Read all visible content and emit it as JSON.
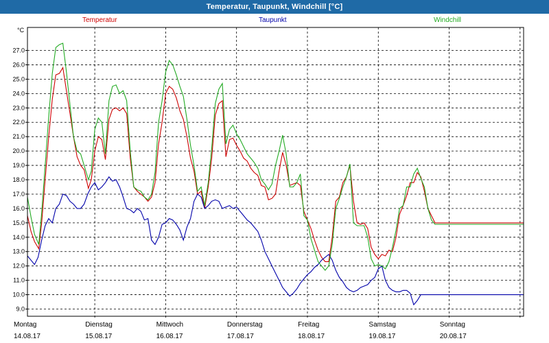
{
  "window": {
    "title": "Temperatur, Taupunkt, Windchill [°C]"
  },
  "colors": {
    "temperature": "#cc0000",
    "dewpoint": "#0000aa",
    "windchill": "#22aa22",
    "titlebar": "#1f6aa6",
    "grid": "#000000"
  },
  "chart_data": {
    "type": "line",
    "title": "Temperatur, Taupunkt, Windchill [°C]",
    "ylabel": "°C",
    "xlabel": "",
    "ylim": [
      8.5,
      28.6
    ],
    "xlim": [
      0,
      7
    ],
    "grid": true,
    "legend": "top",
    "y_ticks": [
      9.0,
      10.0,
      11.0,
      12.0,
      13.0,
      14.0,
      15.0,
      16.0,
      17.0,
      18.0,
      19.0,
      20.0,
      21.0,
      22.0,
      23.0,
      24.0,
      25.0,
      26.0,
      27.0
    ],
    "y_tick_labels": [
      "9.0",
      "10.0",
      "11.0",
      "12.0",
      "13.0",
      "14.0",
      "15.0",
      "16.0",
      "17.0",
      "18.0",
      "19.0",
      "20.0",
      "21.0",
      "22.0",
      "23.0",
      "24.0",
      "25.0",
      "26.0",
      "27.0"
    ],
    "x_ticks": [
      {
        "day": "Montag",
        "date": "14.08.17"
      },
      {
        "day": "Dienstag",
        "date": "15.08.17"
      },
      {
        "day": "Mittwoch",
        "date": "16.08.17"
      },
      {
        "day": "Donnerstag",
        "date": "17.08.17"
      },
      {
        "day": "Freitag",
        "date": "18.08.17"
      },
      {
        "day": "Samstag",
        "date": "19.08.17"
      },
      {
        "day": "Sonntag",
        "date": "20.08.17"
      }
    ],
    "series": [
      {
        "name": "Temperatur",
        "color": "#cc0000",
        "x": [
          0,
          0.05,
          0.1,
          0.16,
          0.2,
          0.25,
          0.3,
          0.35,
          0.4,
          0.45,
          0.5,
          0.55,
          0.6,
          0.65,
          0.7,
          0.75,
          0.8,
          0.86,
          0.9,
          0.95,
          1.0,
          1.05,
          1.1,
          1.15,
          1.2,
          1.25,
          1.3,
          1.35,
          1.4,
          1.45,
          1.5,
          1.55,
          1.6,
          1.65,
          1.7,
          1.75,
          1.8,
          1.85,
          1.9,
          1.95,
          2.0,
          2.05,
          2.1,
          2.15,
          2.2,
          2.25,
          2.3,
          2.35,
          2.4,
          2.45,
          2.5,
          2.55,
          2.6,
          2.65,
          2.7,
          2.75,
          2.8,
          2.85,
          2.9,
          2.95,
          3.0,
          3.05,
          3.1,
          3.15,
          3.2,
          3.25,
          3.3,
          3.35,
          3.4,
          3.45,
          3.5,
          3.55,
          3.6,
          3.65,
          3.7,
          3.75,
          3.8,
          3.85,
          3.9,
          3.95,
          4.0,
          4.05,
          4.1,
          4.15,
          4.2,
          4.25,
          4.3,
          4.35,
          4.4,
          4.45,
          4.5,
          4.55,
          4.6,
          4.65,
          4.7,
          4.75,
          4.8,
          4.85,
          4.9,
          4.95,
          5.0,
          5.05,
          5.1,
          5.15,
          5.2,
          5.25,
          5.3,
          5.35,
          5.4,
          5.45,
          5.5,
          5.55,
          5.6,
          5.65,
          5.7,
          5.75,
          5.8,
          5.85,
          5.9,
          5.95,
          6.0,
          6.05,
          6.1,
          6.15,
          6.2,
          6.25,
          6.3,
          6.35,
          6.4,
          6.45,
          6.5,
          6.55,
          6.6,
          6.65,
          6.7,
          6.75,
          6.8,
          6.85,
          6.9,
          6.95,
          7.0
        ],
        "values": [
          15.5,
          14.4,
          13.7,
          13.2,
          15.0,
          18.0,
          21.0,
          23.6,
          25.3,
          25.4,
          25.8,
          24.2,
          22.6,
          21.0,
          19.6,
          19.0,
          18.7,
          17.4,
          18.0,
          20.0,
          21.0,
          20.8,
          19.4,
          22.2,
          22.9,
          23.0,
          22.8,
          23.0,
          22.6,
          19.5,
          17.5,
          17.2,
          17.0,
          16.8,
          16.5,
          16.8,
          17.8,
          20.5,
          22.0,
          24.0,
          24.5,
          24.3,
          23.7,
          22.8,
          22.2,
          21.0,
          19.5,
          18.6,
          17.0,
          17.2,
          16.0,
          17.5,
          19.5,
          22.5,
          23.3,
          23.5,
          19.6,
          20.8,
          20.9,
          20.4,
          20.0,
          19.5,
          19.3,
          18.8,
          18.5,
          18.3,
          17.6,
          17.5,
          16.6,
          16.7,
          17.0,
          18.6,
          19.9,
          19.0,
          17.6,
          17.7,
          17.8,
          17.6,
          15.8,
          15.2,
          14.6,
          13.8,
          13.1,
          12.6,
          12.3,
          12.3,
          14.0,
          16.5,
          16.8,
          17.8,
          18.2,
          19.0,
          16.5,
          15.0,
          14.9,
          15.0,
          14.6,
          13.3,
          12.8,
          12.5,
          12.8,
          12.7,
          13.1,
          13.0,
          14.0,
          15.6,
          16.2,
          16.9,
          17.8,
          17.8,
          18.5,
          18.2,
          17.2,
          16.0,
          15.5,
          15.0,
          15.0,
          15.0,
          15.0,
          15.0,
          15.0,
          15.0,
          15.0,
          15.0,
          15.0,
          15.0,
          15.0,
          15.0,
          15.0,
          15.0,
          15.0,
          15.0,
          15.0,
          15.0,
          15.0,
          15.0,
          15.0,
          15.0,
          15.0,
          15.0,
          15.0
        ]
      },
      {
        "name": "Taupunkt",
        "color": "#0000aa",
        "x": [
          0,
          0.05,
          0.1,
          0.15,
          0.2,
          0.25,
          0.3,
          0.35,
          0.4,
          0.45,
          0.5,
          0.55,
          0.6,
          0.65,
          0.7,
          0.75,
          0.8,
          0.85,
          0.9,
          0.95,
          1.0,
          1.05,
          1.1,
          1.15,
          1.2,
          1.25,
          1.3,
          1.35,
          1.4,
          1.45,
          1.5,
          1.55,
          1.6,
          1.65,
          1.7,
          1.75,
          1.8,
          1.85,
          1.9,
          1.95,
          2.0,
          2.05,
          2.1,
          2.15,
          2.2,
          2.25,
          2.3,
          2.35,
          2.4,
          2.45,
          2.5,
          2.55,
          2.6,
          2.65,
          2.7,
          2.75,
          2.8,
          2.85,
          2.9,
          2.95,
          3.0,
          3.05,
          3.1,
          3.15,
          3.2,
          3.25,
          3.3,
          3.35,
          3.4,
          3.45,
          3.5,
          3.55,
          3.6,
          3.65,
          3.7,
          3.75,
          3.8,
          3.85,
          3.9,
          3.95,
          4.0,
          4.05,
          4.1,
          4.15,
          4.2,
          4.25,
          4.3,
          4.35,
          4.4,
          4.45,
          4.5,
          4.55,
          4.6,
          4.65,
          4.7,
          4.75,
          4.8,
          4.85,
          4.9,
          4.95,
          5.0,
          5.05,
          5.1,
          5.15,
          5.2,
          5.25,
          5.3,
          5.35,
          5.4,
          5.45,
          5.5,
          5.55,
          5.6,
          5.65,
          5.7,
          5.75,
          5.8,
          5.85,
          5.9,
          5.95,
          6.0,
          6.05,
          6.1,
          6.15,
          6.2,
          6.25,
          6.3,
          6.35,
          6.4,
          6.45,
          6.5,
          6.55,
          6.6,
          6.65,
          6.7,
          6.75,
          6.8,
          6.85,
          6.9,
          6.95,
          7.0
        ],
        "values": [
          12.7,
          12.4,
          12.1,
          12.6,
          13.8,
          14.8,
          15.3,
          15.0,
          16.0,
          16.3,
          17.0,
          16.9,
          16.5,
          16.3,
          16.0,
          16.0,
          16.3,
          17.0,
          17.5,
          17.8,
          17.3,
          17.5,
          17.8,
          18.2,
          17.9,
          18.0,
          17.5,
          16.8,
          16.0,
          15.9,
          15.7,
          16.0,
          15.8,
          15.2,
          15.3,
          13.8,
          13.5,
          14.0,
          14.9,
          15.0,
          15.3,
          15.2,
          14.9,
          14.5,
          13.8,
          14.7,
          15.3,
          16.5,
          17.0,
          16.8,
          16.0,
          16.2,
          16.5,
          16.6,
          16.5,
          16.0,
          16.1,
          16.2,
          16.0,
          16.1,
          15.8,
          15.5,
          15.2,
          15.0,
          14.7,
          14.4,
          13.8,
          13.0,
          12.5,
          12.0,
          11.5,
          11.0,
          10.5,
          10.2,
          9.9,
          10.1,
          10.4,
          10.8,
          11.1,
          11.4,
          11.6,
          11.9,
          12.1,
          12.4,
          12.6,
          12.8,
          12.4,
          11.7,
          11.2,
          10.9,
          10.5,
          10.3,
          10.2,
          10.3,
          10.5,
          10.6,
          10.7,
          11.0,
          11.2,
          11.8,
          12.0,
          11.0,
          10.5,
          10.3,
          10.2,
          10.2,
          10.3,
          10.3,
          10.1,
          9.3,
          9.6,
          10.0,
          10.0,
          10.0,
          10.0,
          10.0,
          10.0,
          10.0,
          10.0,
          10.0,
          10.0,
          10.0,
          10.0,
          10.0,
          10.0,
          10.0,
          10.0,
          10.0,
          10.0,
          10.0,
          10.0,
          10.0,
          10.0,
          10.0,
          10.0,
          10.0,
          10.0,
          10.0,
          10.0,
          10.0,
          10.0
        ]
      },
      {
        "name": "Windchill",
        "color": "#22aa22",
        "x": [
          0,
          0.05,
          0.1,
          0.16,
          0.2,
          0.25,
          0.3,
          0.35,
          0.4,
          0.45,
          0.5,
          0.55,
          0.6,
          0.65,
          0.7,
          0.75,
          0.8,
          0.86,
          0.9,
          0.95,
          1.0,
          1.05,
          1.1,
          1.15,
          1.2,
          1.25,
          1.3,
          1.35,
          1.4,
          1.45,
          1.5,
          1.55,
          1.6,
          1.65,
          1.7,
          1.75,
          1.8,
          1.85,
          1.9,
          1.95,
          2.0,
          2.05,
          2.1,
          2.15,
          2.2,
          2.25,
          2.3,
          2.35,
          2.4,
          2.45,
          2.5,
          2.55,
          2.6,
          2.65,
          2.7,
          2.75,
          2.8,
          2.85,
          2.9,
          2.95,
          3.0,
          3.05,
          3.1,
          3.15,
          3.2,
          3.25,
          3.3,
          3.35,
          3.4,
          3.45,
          3.5,
          3.55,
          3.6,
          3.65,
          3.7,
          3.75,
          3.8,
          3.85,
          3.9,
          3.95,
          4.0,
          4.05,
          4.1,
          4.15,
          4.2,
          4.25,
          4.3,
          4.35,
          4.4,
          4.45,
          4.5,
          4.55,
          4.6,
          4.65,
          4.7,
          4.75,
          4.8,
          4.85,
          4.9,
          4.95,
          5.0,
          5.05,
          5.1,
          5.15,
          5.2,
          5.25,
          5.3,
          5.35,
          5.4,
          5.45,
          5.5,
          5.55,
          5.6,
          5.65,
          5.7,
          5.75,
          5.8,
          5.85,
          5.9,
          5.95,
          6.0,
          6.05,
          6.1,
          6.15,
          6.2,
          6.25,
          6.3,
          6.35,
          6.4,
          6.45,
          6.5,
          6.55,
          6.6,
          6.65,
          6.7,
          6.75,
          6.8,
          6.85,
          6.9,
          6.95,
          7.0
        ],
        "values": [
          16.8,
          15.4,
          14.2,
          13.5,
          15.7,
          19.0,
          22.4,
          25.4,
          27.2,
          27.4,
          27.5,
          25.5,
          23.2,
          21.0,
          20.0,
          19.8,
          19.0,
          18.0,
          18.6,
          21.5,
          22.3,
          22.0,
          19.8,
          23.5,
          24.5,
          24.6,
          24.0,
          24.2,
          23.5,
          20.0,
          17.5,
          17.3,
          17.2,
          16.8,
          16.6,
          17.0,
          18.5,
          22.0,
          23.5,
          25.5,
          26.3,
          26.0,
          25.3,
          24.5,
          23.8,
          22.2,
          20.4,
          19.0,
          17.2,
          17.5,
          16.2,
          17.8,
          20.2,
          23.3,
          24.3,
          24.7,
          20.5,
          21.5,
          21.8,
          21.2,
          20.8,
          20.3,
          19.8,
          19.5,
          19.2,
          18.8,
          18.0,
          17.7,
          17.3,
          17.7,
          19.0,
          20.0,
          21.1,
          19.8,
          17.5,
          17.5,
          17.8,
          18.4,
          15.5,
          15.2,
          13.9,
          13.1,
          12.3,
          12.0,
          11.7,
          12.0,
          13.5,
          16.0,
          16.7,
          17.5,
          18.2,
          19.1,
          15.0,
          14.8,
          14.8,
          14.8,
          14.0,
          12.5,
          12.0,
          12.1,
          12.0,
          11.8,
          12.3,
          13.3,
          14.5,
          16.0,
          16.2,
          17.5,
          17.5,
          18.4,
          18.8,
          18.1,
          17.5,
          16.0,
          15.2,
          14.9,
          14.9,
          14.9,
          14.9,
          14.9,
          14.9,
          14.9,
          14.9,
          14.9,
          14.9,
          14.9,
          14.9,
          14.9,
          14.9,
          14.9,
          14.9,
          14.9,
          14.9,
          14.9,
          14.9,
          14.9,
          14.9,
          14.9,
          14.9,
          14.9,
          14.9
        ]
      }
    ]
  }
}
